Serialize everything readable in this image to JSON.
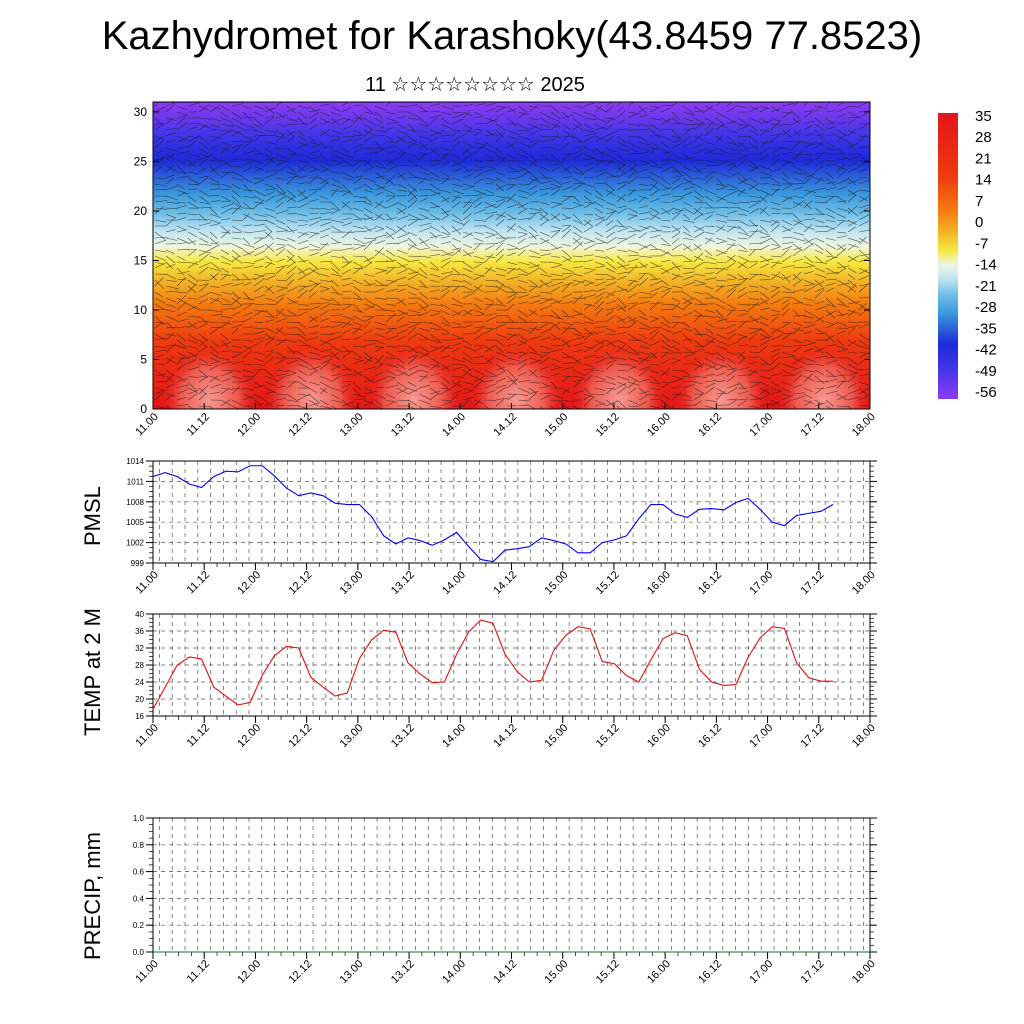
{
  "title": "Kazhydromet for Karashoky(43.8459 77.8523)",
  "subtitle": "11 ☆☆☆☆☆☆☆☆ 2025",
  "time_ticks": [
    "11.00",
    "11.12",
    "12.00",
    "12.12",
    "13.00",
    "13.12",
    "14.00",
    "14.12",
    "15.00",
    "15.12",
    "16.00",
    "16.12",
    "17.00",
    "17.12",
    "18.00"
  ],
  "chart_data": [
    {
      "type": "heatmap",
      "name": "temperature cross-section",
      "x_ticks": [
        "11.00",
        "11.12",
        "12.00",
        "12.12",
        "13.00",
        "13.12",
        "14.00",
        "14.12",
        "15.00",
        "15.12",
        "16.00",
        "16.12",
        "17.00",
        "17.12",
        "18.00"
      ],
      "y_ticks": [
        0,
        5,
        10,
        15,
        20,
        25,
        30
      ],
      "ylim": [
        0,
        31
      ],
      "colorbar_labels": [
        "35",
        "28",
        "21",
        "14",
        "7",
        "0",
        "-7",
        "-14",
        "-21",
        "-28",
        "-35",
        "-42",
        "-49",
        "-56"
      ],
      "colors": {
        "hot": "#e8141c",
        "warm": "#f07a10",
        "yellow": "#f6e83c",
        "pale": "#dceef4",
        "blue": "#2a8fd8",
        "deep": "#2020e0",
        "violet": "#8a3cf0"
      }
    },
    {
      "type": "line",
      "ylabel": "PMSL",
      "ylim": [
        999,
        1014
      ],
      "y_ticks": [
        "1014",
        "1011",
        "1008",
        "1005",
        "1002",
        "999"
      ],
      "x_ticks": [
        "11.00",
        "11.12",
        "12.00",
        "12.12",
        "13.00",
        "13.12",
        "14.00",
        "14.12",
        "15.00",
        "15.12",
        "16.00",
        "16.12",
        "17.00",
        "17.12",
        "18.00"
      ],
      "color": "#0000ff",
      "x": [
        0,
        3,
        6,
        9,
        12,
        15,
        18,
        21,
        24,
        27,
        30,
        33,
        36,
        39,
        42,
        45,
        48,
        51,
        54,
        57,
        60,
        63,
        66,
        69,
        72,
        75,
        78,
        81,
        84,
        87,
        90,
        93,
        96,
        99,
        102,
        105,
        108,
        111,
        114,
        117,
        120,
        123,
        126,
        129,
        132,
        135,
        138,
        141,
        144,
        147,
        150,
        153,
        156,
        159,
        162,
        165,
        168
      ],
      "values": [
        1011.7,
        1012.3,
        1011.7,
        1010.6,
        1010.1,
        1011.7,
        1012.5,
        1012.4,
        1013.3,
        1013.3,
        1011.8,
        1010.0,
        1008.9,
        1009.3,
        1008.9,
        1007.8,
        1007.6,
        1007.6,
        1005.8,
        1003.0,
        1001.8,
        1002.7,
        1002.3,
        1001.6,
        1002.4,
        1003.5,
        1001.4,
        999.5,
        999.2,
        1000.9,
        1001.1,
        1001.4,
        1002.7,
        1002.3,
        1001.8,
        1000.5,
        1000.5,
        1002.0,
        1002.4,
        1003.0,
        1005.5,
        1007.6,
        1007.6,
        1006.2,
        1005.7,
        1006.9,
        1007.0,
        1006.8,
        1007.9,
        1008.5,
        1006.9,
        1005.0,
        1004.5,
        1006.0,
        1006.3,
        1006.6,
        1007.6
      ]
    },
    {
      "type": "line",
      "ylabel": "TEMP at 2 M",
      "ylim": [
        16,
        40
      ],
      "y_ticks": [
        "40",
        "36",
        "32",
        "28",
        "24",
        "20",
        "16"
      ],
      "x_ticks": [
        "11.00",
        "11.12",
        "12.00",
        "12.12",
        "13.00",
        "13.12",
        "14.00",
        "14.12",
        "15.00",
        "15.12",
        "16.00",
        "16.12",
        "17.00",
        "17.12",
        "18.00"
      ],
      "color": "#e01010",
      "x": [
        0,
        3,
        6,
        9,
        12,
        15,
        18,
        21,
        24,
        27,
        30,
        33,
        36,
        39,
        42,
        45,
        48,
        51,
        54,
        57,
        60,
        63,
        66,
        69,
        72,
        75,
        78,
        81,
        84,
        87,
        90,
        93,
        96,
        99,
        102,
        105,
        108,
        111,
        114,
        117,
        120,
        123,
        126,
        129,
        132,
        135,
        138,
        141,
        144,
        147,
        150,
        153,
        156,
        159,
        162,
        165,
        168
      ],
      "values": [
        17.6,
        22.8,
        28.0,
        29.9,
        29.4,
        22.8,
        20.7,
        18.6,
        19.2,
        25.6,
        30.2,
        32.4,
        32.0,
        25.1,
        22.8,
        20.7,
        21.4,
        29.5,
        33.9,
        36.2,
        35.7,
        28.5,
        25.9,
        23.8,
        24.0,
        30.5,
        35.8,
        38.6,
        37.8,
        30.5,
        26.4,
        24.0,
        24.4,
        31.4,
        35.0,
        37.0,
        36.5,
        28.8,
        28.3,
        25.5,
        24.0,
        29.2,
        34.2,
        35.6,
        34.9,
        27.0,
        24.0,
        23.2,
        23.4,
        29.8,
        34.4,
        37.0,
        36.6,
        28.5,
        25.0,
        24.2,
        24.2
      ]
    },
    {
      "type": "line",
      "ylabel": "PRECIP, mm",
      "ylim": [
        0,
        1
      ],
      "y_ticks": [
        "1.0",
        "0.8",
        "0.6",
        "0.4",
        "0.2",
        "0.0"
      ],
      "x_ticks": [
        "11.00",
        "11.12",
        "12.00",
        "12.12",
        "13.00",
        "13.12",
        "14.00",
        "14.12",
        "15.00",
        "15.12",
        "16.00",
        "16.12",
        "17.00",
        "17.12",
        "18.00"
      ],
      "color": "#1a6e1a",
      "values_all": 0
    }
  ]
}
